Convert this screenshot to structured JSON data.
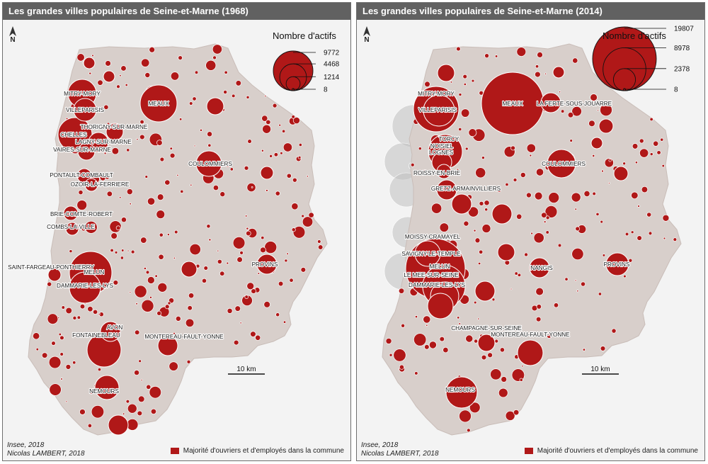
{
  "colors": {
    "commune_red": "#b01818",
    "other_circle": "#c0c0c0",
    "territory": "#d8cfcb",
    "panel_bg": "#f3f3f3",
    "header_bg": "#616161"
  },
  "maps": [
    {
      "title": "Les grandes villes populaires de Seine-et-Marne (1968)",
      "north_label": "N",
      "legend": {
        "title": "Nombre d'actifs",
        "values": [
          "9772",
          "4468",
          "1214",
          "8"
        ]
      },
      "scale_label": "10 km",
      "credits": [
        "Insee, 2018",
        "Nicolas LAMBERT, 2018"
      ],
      "category_legend": "Majorité d'ouvriers et d'employés dans la commune",
      "cities": [
        "MITRY-MORY",
        "VILLEPARISIS",
        "MEAUX",
        "THORIGNY-SUR-MARNE",
        "CHELLES",
        "LAGNY-SUR-MARNE",
        "VAIRES-SUR-MARNE",
        "COULOMMIERS",
        "PONTAULT-COMBAULT",
        "OZOIR-LA-FERRIERE",
        "BRIE-COMTE-ROBERT",
        "COMBS-LA-VILLE",
        "SAINT-FARGEAU-PONTHIERRY",
        "MELUN",
        "DAMMARIE-LES-LYS",
        "PROVINS",
        "AVON",
        "FONTAINEBLEAU",
        "MONTEREAU-FAULT-YONNE",
        "NEMOURS"
      ]
    },
    {
      "title": "Les grandes villes populaires de Seine-et-Marne (2014)",
      "north_label": "N",
      "legend": {
        "title": "Nombre d'actifs",
        "values": [
          "19807",
          "8978",
          "2378",
          "8"
        ]
      },
      "scale_label": "10 km",
      "credits": [
        "Insee, 2018",
        "Nicolas LAMBERT, 2018"
      ],
      "category_legend": "Majorité d'ouvriers et d'employés dans la commune",
      "cities": [
        "MITRY-MORY",
        "MEAUX",
        "LA FERTE-SOUS-JOUARRE",
        "VILLEPARISIS",
        "TORCY",
        "NOISIEL",
        "LOGNES",
        "COULOMMIERS",
        "ROISSY-EN-BRIE",
        "GRETZ-ARMAINVILLIERS",
        "MOISSY-CRAMAYEL",
        "SAVIGNY-LE-TEMPLE",
        "MELUN",
        "NANGIS",
        "PROVINS",
        "LE MEE-SUR-SEINE",
        "DAMMARIE-LES-LYS",
        "CHAMPAGNE-SUR-SEINE",
        "MONTEREAU-FAULT-YONNE",
        "NEMOURS"
      ]
    }
  ]
}
